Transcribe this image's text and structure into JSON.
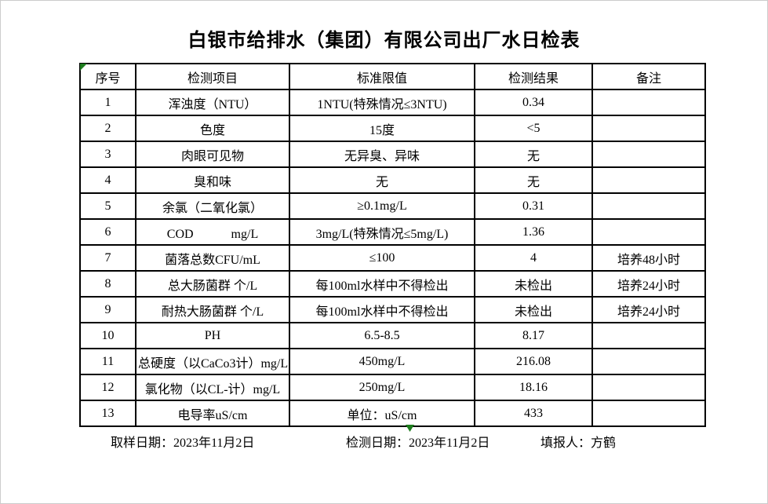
{
  "title": "白银市给排水（集团）有限公司出厂水日检表",
  "table": {
    "headers": [
      "序号",
      "检测项目",
      "标准限值",
      "检测结果",
      "备注"
    ],
    "rows": [
      {
        "no": "1",
        "item": "浑浊度（NTU）",
        "limit": "1NTU(特殊情况≤3NTU)",
        "result": "0.34",
        "remark": ""
      },
      {
        "no": "2",
        "item": "色度",
        "limit": "15度",
        "result": "<5",
        "remark": ""
      },
      {
        "no": "3",
        "item": "肉眼可见物",
        "limit": "无异臭、异味",
        "result": "无",
        "remark": ""
      },
      {
        "no": "4",
        "item": "臭和味",
        "limit": "无",
        "result": "无",
        "remark": ""
      },
      {
        "no": "5",
        "item": "余氯（二氧化氯）",
        "limit": "≥0.1mg/L",
        "result": "0.31",
        "remark": ""
      },
      {
        "no": "6",
        "item": "COD　　　mg/L",
        "limit": "3mg/L(特殊情况≤5mg/L)",
        "result": "1.36",
        "remark": ""
      },
      {
        "no": "7",
        "item": "菌落总数CFU/mL",
        "limit": "≤100",
        "result": "4",
        "remark": "培养48小时"
      },
      {
        "no": "8",
        "item": "总大肠菌群 个/L",
        "limit": "每100ml水样中不得检出",
        "result": "未检出",
        "remark": "培养24小时"
      },
      {
        "no": "9",
        "item": "耐热大肠菌群 个/L",
        "limit": "每100ml水样中不得检出",
        "result": "未检出",
        "remark": "培养24小时"
      },
      {
        "no": "10",
        "item": "PH",
        "limit": "6.5-8.5",
        "result": "8.17",
        "remark": ""
      },
      {
        "no": "11",
        "item": "总硬度（以CaCo3计）mg/L",
        "limit": "450mg/L",
        "result": "216.08",
        "remark": ""
      },
      {
        "no": "12",
        "item": "氯化物（以CL-计）mg/L",
        "limit": "250mg/L",
        "result": "18.16",
        "remark": ""
      },
      {
        "no": "13",
        "item": "电导率uS/cm",
        "limit": "单位：uS/cm",
        "result": "433",
        "remark": ""
      }
    ]
  },
  "footer": {
    "sample_date": "取样日期：2023年11月2日",
    "test_date": "检测日期：2023年11月2日",
    "reporter": "填报人：方鹤"
  },
  "colors": {
    "marker_green": "#1e7d1e",
    "border": "#000000",
    "background": "#ffffff"
  }
}
